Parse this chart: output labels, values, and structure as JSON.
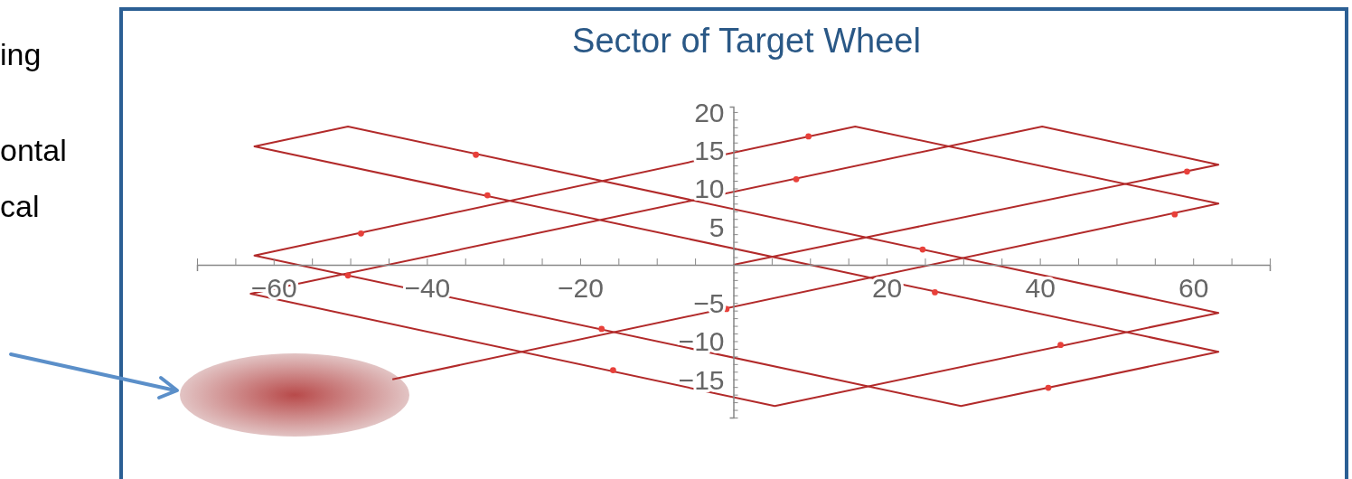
{
  "chart_data": {
    "type": "line",
    "title": "Sector of Target Wheel",
    "annotations": [
      "ing",
      "ontal",
      "cal"
    ],
    "xlim": [
      -70,
      70
    ],
    "ylim": [
      -20,
      20.7
    ],
    "xticks": [
      {
        "value": -70,
        "label": null
      },
      {
        "value": -65,
        "label": null
      },
      {
        "value": -60,
        "label": "−60"
      },
      {
        "value": -55,
        "label": null
      },
      {
        "value": -50,
        "label": null
      },
      {
        "value": -45,
        "label": null
      },
      {
        "value": -40,
        "label": "−40"
      },
      {
        "value": -35,
        "label": null
      },
      {
        "value": -30,
        "label": null
      },
      {
        "value": -25,
        "label": null
      },
      {
        "value": -20,
        "label": "−20"
      },
      {
        "value": -15,
        "label": null
      },
      {
        "value": -10,
        "label": null
      },
      {
        "value": -5,
        "label": null
      },
      {
        "value": 5,
        "label": null
      },
      {
        "value": 10,
        "label": null
      },
      {
        "value": 15,
        "label": null
      },
      {
        "value": 20,
        "label": "20"
      },
      {
        "value": 25,
        "label": null
      },
      {
        "value": 30,
        "label": null
      },
      {
        "value": 35,
        "label": null
      },
      {
        "value": 40,
        "label": "40"
      },
      {
        "value": 45,
        "label": null
      },
      {
        "value": 50,
        "label": null
      },
      {
        "value": 55,
        "label": null
      },
      {
        "value": 60,
        "label": "60"
      },
      {
        "value": 65,
        "label": null
      },
      {
        "value": 70,
        "label": null
      }
    ],
    "yticks": [
      {
        "value": -20,
        "label": null
      },
      {
        "value": -19,
        "label": null
      },
      {
        "value": -18,
        "label": null
      },
      {
        "value": -17,
        "label": null
      },
      {
        "value": -16,
        "label": null
      },
      {
        "value": -15,
        "label": "−15"
      },
      {
        "value": -14,
        "label": null
      },
      {
        "value": -13,
        "label": null
      },
      {
        "value": -12,
        "label": null
      },
      {
        "value": -11,
        "label": null
      },
      {
        "value": -10,
        "label": "−10"
      },
      {
        "value": -9,
        "label": null
      },
      {
        "value": -8,
        "label": null
      },
      {
        "value": -7,
        "label": null
      },
      {
        "value": -6,
        "label": null
      },
      {
        "value": -5,
        "label": "−5"
      },
      {
        "value": -4,
        "label": null
      },
      {
        "value": -3,
        "label": null
      },
      {
        "value": -2,
        "label": null
      },
      {
        "value": -1,
        "label": null
      },
      {
        "value": 1,
        "label": null
      },
      {
        "value": 2,
        "label": null
      },
      {
        "value": 3,
        "label": null
      },
      {
        "value": 4,
        "label": null
      },
      {
        "value": 5,
        "label": "5"
      },
      {
        "value": 6,
        "label": null
      },
      {
        "value": 7,
        "label": null
      },
      {
        "value": 8,
        "label": null
      },
      {
        "value": 9,
        "label": null
      },
      {
        "value": 10,
        "label": "10"
      },
      {
        "value": 11,
        "label": null
      },
      {
        "value": 12,
        "label": null
      },
      {
        "value": 13,
        "label": null
      },
      {
        "value": 14,
        "label": null
      },
      {
        "value": 15,
        "label": "15"
      },
      {
        "value": 16,
        "label": null
      },
      {
        "value": 17,
        "label": null
      },
      {
        "value": 18,
        "label": null
      },
      {
        "value": 19,
        "label": null
      },
      {
        "value": 20,
        "label": "20"
      }
    ],
    "series": [
      {
        "color": "#b22a2a",
        "marker": "none",
        "line_style": "solid",
        "x": [
          0,
          63.3,
          40.3,
          -63,
          5.4,
          63.3,
          -50.3,
          -62.5,
          63.3,
          29.7,
          -62.5,
          15.9,
          63.3,
          -44.5
        ],
        "values": [
          0,
          13.1,
          18.1,
          -3.8,
          -18.5,
          -6.3,
          18.1,
          15.5,
          -11.4,
          -18.5,
          1.2,
          18.1,
          8.0,
          -15
        ]
      },
      {
        "type": "scatter",
        "color": "#e8403a",
        "marker": "circle",
        "x": [
          -33.6,
          -32.1,
          -48.6,
          -50.3,
          -17.2,
          -15.7,
          -0.9,
          9.8,
          8.2,
          24.7,
          26.3,
          59.2,
          57.6,
          42.7,
          41.1
        ],
        "values": [
          14.4,
          9.1,
          4.1,
          -1.4,
          -8.4,
          -13.8,
          -5.8,
          16.8,
          11.2,
          2.0,
          -3.6,
          12.2,
          6.6,
          -10.5,
          -16.1
        ]
      }
    ]
  }
}
